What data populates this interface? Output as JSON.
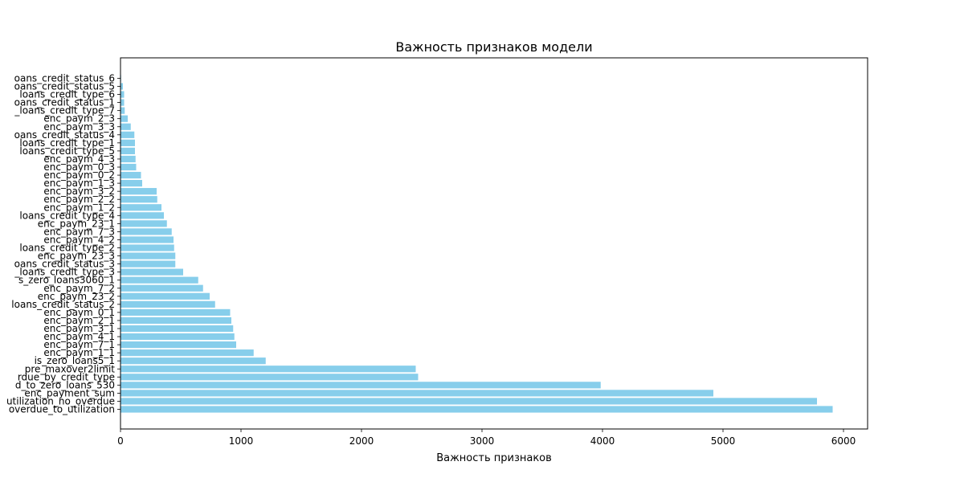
{
  "chart_data": {
    "type": "bar",
    "orientation": "horizontal",
    "title": "Важность признаков модели",
    "xlabel": "Важность признаков",
    "ylabel": "",
    "xlim": [
      0,
      6200
    ],
    "xticks": [
      0,
      1000,
      2000,
      3000,
      4000,
      5000,
      6000
    ],
    "bar_color": "#87ceeb",
    "grid": false,
    "categories": [
      "overdue_to_utilization",
      "utilization_no_overdue",
      "enc_payment_sum",
      "d_to_zero_loans_530",
      "rdue_by_credit_type",
      "pre_maxover2limit",
      "is_zero_loans5_1",
      "enc_paym_1_1",
      "enc_paym_7_1",
      "enc_paym_4_1",
      "enc_paym_3_1",
      "enc_paym_2_1",
      "enc_paym_0_1",
      "loans_credit_status_2",
      "enc_paym_23_2",
      "enc_paym_7_2",
      "s_zero_loans3060_1",
      "_loans_credit_type_3",
      "oans_credit_status_3",
      "enc_paym_23_3",
      "loans_credit_type_2",
      "enc_paym_4_2",
      "enc_paym_7_3",
      "enc_paym_23_1",
      "loans_credit_type_4",
      "enc_paym_1_2",
      "enc_paym_2_2",
      "enc_paym_3_2",
      "enc_paym_1_3",
      "enc_paym_0_2",
      "enc_paym_0_3",
      "enc_paym_4_3",
      "loans_credit_type_5",
      "loans_credit_type_1",
      "oans_credit_status_4",
      "enc_paym_3_3",
      "enc_paym_2_3",
      "_loans_credit_type_7",
      "oans_credit_status_1",
      "loans_credit_type_6",
      "oans_credit_status_5",
      "oans_credit_status_6"
    ],
    "values": [
      5910,
      5780,
      4920,
      3985,
      2470,
      2450,
      1205,
      1105,
      960,
      945,
      935,
      920,
      910,
      785,
      740,
      685,
      645,
      520,
      455,
      455,
      445,
      440,
      425,
      385,
      360,
      340,
      305,
      300,
      180,
      170,
      130,
      125,
      120,
      120,
      115,
      85,
      60,
      35,
      30,
      30,
      20,
      5
    ]
  }
}
